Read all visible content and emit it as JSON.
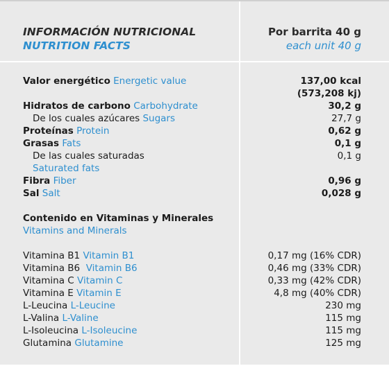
{
  "header": {
    "title_es": "INFORMACIÓN NUTRICIONAL",
    "title_en": "NUTRITION FACTS",
    "serving_es": "Por barrita 40 g",
    "serving_en": "each unit 40 g"
  },
  "nutrients": [
    {
      "es": "Valor energético",
      "en": "Energetic value",
      "value": "137,00 kcal"
    },
    {
      "es": "",
      "en": "",
      "value": "(573,208 kj)"
    },
    {
      "es": "Hidratos de carbono",
      "en": "Carbohydrate",
      "value": "30,2 g"
    },
    {
      "es": "De los cuales azúcares",
      "en": "Sugars",
      "value": "27,7 g"
    },
    {
      "es": "Proteínas",
      "en": "Protein",
      "value": "0,62 g"
    },
    {
      "es": "Grasas",
      "en": "Fats",
      "value": "0,1 g"
    },
    {
      "es": "De las cuales saturadas",
      "en": "",
      "value": "0,1 g"
    },
    {
      "es": "",
      "en": "Saturated fats",
      "value": ""
    },
    {
      "es": "Fibra",
      "en": "Fiber",
      "value": "0,96 g"
    },
    {
      "es": "Sal",
      "en": "Salt",
      "value": "0,028 g"
    }
  ],
  "vitamins_section": {
    "es": "Contenido en Vitaminas y Minerales",
    "en": "Vitamins and Minerals"
  },
  "vitamins": [
    {
      "es": "Vitamina B1",
      "en": "Vitamin B1",
      "value": "0,17 mg (16% CDR)"
    },
    {
      "es": "Vitamina B6",
      "en": "Vitamin B6",
      "value": "0,46 mg (33% CDR)"
    },
    {
      "es": "Vitamina C",
      "en": "Vitamin C",
      "value": "0,33 mg (42% CDR)"
    },
    {
      "es": "Vitamina E",
      "en": "Vitamin E",
      "value": "4,8 mg (40% CDR)"
    },
    {
      "es": "L-Leucina",
      "en": "L-Leucine",
      "value": "230 mg"
    },
    {
      "es": "L-Valina",
      "en": "L-Valine",
      "value": "115 mg"
    },
    {
      "es": "L-Isoleucina",
      "en": "L-Isoleucine",
      "value": "115 mg"
    },
    {
      "es": "Glutamina",
      "en": "Glutamine",
      "value": "125 mg"
    }
  ]
}
